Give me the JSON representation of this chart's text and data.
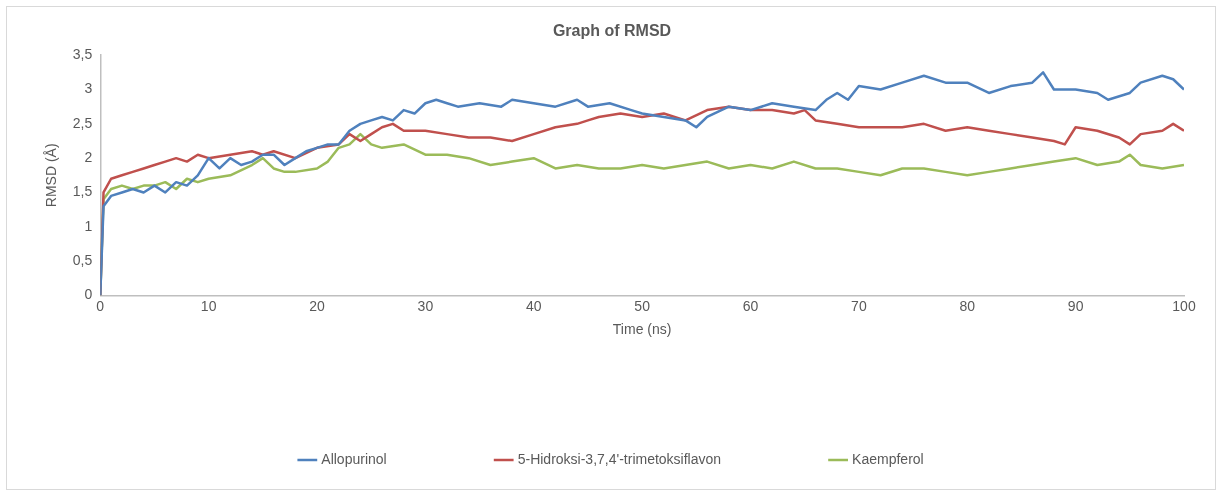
{
  "chart_data": {
    "type": "line",
    "title": "Graph of RMSD",
    "xlabel": "Time (ns)",
    "ylabel": "RMSD (Å)",
    "xlim": [
      0,
      100
    ],
    "xticks": [
      0,
      10,
      20,
      30,
      40,
      50,
      60,
      70,
      80,
      90,
      100
    ],
    "ylim": [
      0,
      3.5
    ],
    "yticks": [
      0,
      {
        "value": 0.5,
        "label": "0,5"
      },
      1,
      {
        "value": 1.5,
        "label": "1,5"
      },
      2,
      {
        "value": 2.5,
        "label": "2,5"
      },
      3,
      {
        "value": 3.5,
        "label": "3,5"
      }
    ],
    "grid": false,
    "legend": "bottom",
    "marker": "none",
    "line_style": "solid",
    "series": [
      {
        "name": "Allopurinol",
        "color": "#4f81bd",
        "x": [
          0,
          0.3,
          1,
          2,
          3,
          4,
          5,
          6,
          7,
          8,
          9,
          10,
          11,
          12,
          13,
          14,
          15,
          16,
          17,
          18,
          19,
          20,
          21,
          22,
          23,
          24,
          25,
          26,
          27,
          28,
          29,
          30,
          31,
          32,
          33,
          35,
          37,
          38,
          40,
          42,
          44,
          45,
          47,
          49,
          50,
          52,
          54,
          55,
          56,
          58,
          60,
          62,
          64,
          66,
          67,
          68,
          69,
          70,
          72,
          74,
          76,
          78,
          80,
          82,
          84,
          86,
          87,
          88,
          90,
          92,
          93,
          95,
          96,
          98,
          99,
          100
        ],
        "values": [
          0,
          1.3,
          1.45,
          1.5,
          1.55,
          1.5,
          1.6,
          1.5,
          1.65,
          1.6,
          1.75,
          2.0,
          1.85,
          2.0,
          1.9,
          1.95,
          2.05,
          2.05,
          1.9,
          2.0,
          2.1,
          2.15,
          2.2,
          2.2,
          2.4,
          2.5,
          2.55,
          2.6,
          2.55,
          2.7,
          2.65,
          2.8,
          2.85,
          2.8,
          2.75,
          2.8,
          2.75,
          2.85,
          2.8,
          2.75,
          2.85,
          2.75,
          2.8,
          2.7,
          2.65,
          2.6,
          2.55,
          2.45,
          2.6,
          2.75,
          2.7,
          2.8,
          2.75,
          2.7,
          2.85,
          2.95,
          2.85,
          3.05,
          3.0,
          3.1,
          3.2,
          3.1,
          3.1,
          2.95,
          3.05,
          3.1,
          3.25,
          3.0,
          3.0,
          2.95,
          2.85,
          2.95,
          3.1,
          3.2,
          3.15,
          3.0
        ]
      },
      {
        "name": "5-Hidroksi-3,7,4'-trimetoksiflavon",
        "color": "#c0504d",
        "x": [
          0,
          0.3,
          1,
          2,
          3,
          4,
          5,
          6,
          7,
          8,
          9,
          10,
          12,
          14,
          15,
          16,
          18,
          20,
          22,
          23,
          24,
          25,
          26,
          27,
          28,
          30,
          32,
          34,
          36,
          38,
          40,
          42,
          44,
          45,
          46,
          48,
          50,
          52,
          54,
          56,
          58,
          60,
          62,
          64,
          65,
          66,
          68,
          70,
          72,
          74,
          76,
          78,
          80,
          82,
          84,
          86,
          88,
          89,
          90,
          92,
          94,
          95,
          96,
          98,
          99,
          100
        ],
        "values": [
          0,
          1.5,
          1.7,
          1.75,
          1.8,
          1.85,
          1.9,
          1.95,
          2.0,
          1.95,
          2.05,
          2.0,
          2.05,
          2.1,
          2.05,
          2.1,
          2.0,
          2.15,
          2.2,
          2.35,
          2.25,
          2.35,
          2.45,
          2.5,
          2.4,
          2.4,
          2.35,
          2.3,
          2.3,
          2.25,
          2.35,
          2.45,
          2.5,
          2.55,
          2.6,
          2.65,
          2.6,
          2.65,
          2.55,
          2.7,
          2.75,
          2.7,
          2.7,
          2.65,
          2.7,
          2.55,
          2.5,
          2.45,
          2.45,
          2.45,
          2.5,
          2.4,
          2.45,
          2.4,
          2.35,
          2.3,
          2.25,
          2.2,
          2.45,
          2.4,
          2.3,
          2.2,
          2.35,
          2.4,
          2.5,
          2.4
        ]
      },
      {
        "name": "Kaempferol",
        "color": "#9bbb59",
        "x": [
          0,
          0.3,
          1,
          2,
          3,
          4,
          5,
          6,
          7,
          8,
          9,
          10,
          12,
          14,
          15,
          16,
          17,
          18,
          20,
          21,
          22,
          23,
          24,
          25,
          26,
          28,
          30,
          32,
          34,
          36,
          38,
          40,
          42,
          44,
          46,
          48,
          50,
          52,
          54,
          56,
          58,
          60,
          62,
          64,
          66,
          68,
          70,
          72,
          74,
          76,
          78,
          80,
          82,
          84,
          86,
          88,
          90,
          92,
          94,
          95,
          96,
          98,
          100
        ],
        "values": [
          0,
          1.4,
          1.55,
          1.6,
          1.55,
          1.6,
          1.6,
          1.65,
          1.55,
          1.7,
          1.65,
          1.7,
          1.75,
          1.9,
          2.0,
          1.85,
          1.8,
          1.8,
          1.85,
          1.95,
          2.15,
          2.2,
          2.35,
          2.2,
          2.15,
          2.2,
          2.05,
          2.05,
          2.0,
          1.9,
          1.95,
          2.0,
          1.85,
          1.9,
          1.85,
          1.85,
          1.9,
          1.85,
          1.9,
          1.95,
          1.85,
          1.9,
          1.85,
          1.95,
          1.85,
          1.85,
          1.8,
          1.75,
          1.85,
          1.85,
          1.8,
          1.75,
          1.8,
          1.85,
          1.9,
          1.95,
          2.0,
          1.9,
          1.95,
          2.05,
          1.9,
          1.85,
          1.9
        ]
      }
    ]
  }
}
